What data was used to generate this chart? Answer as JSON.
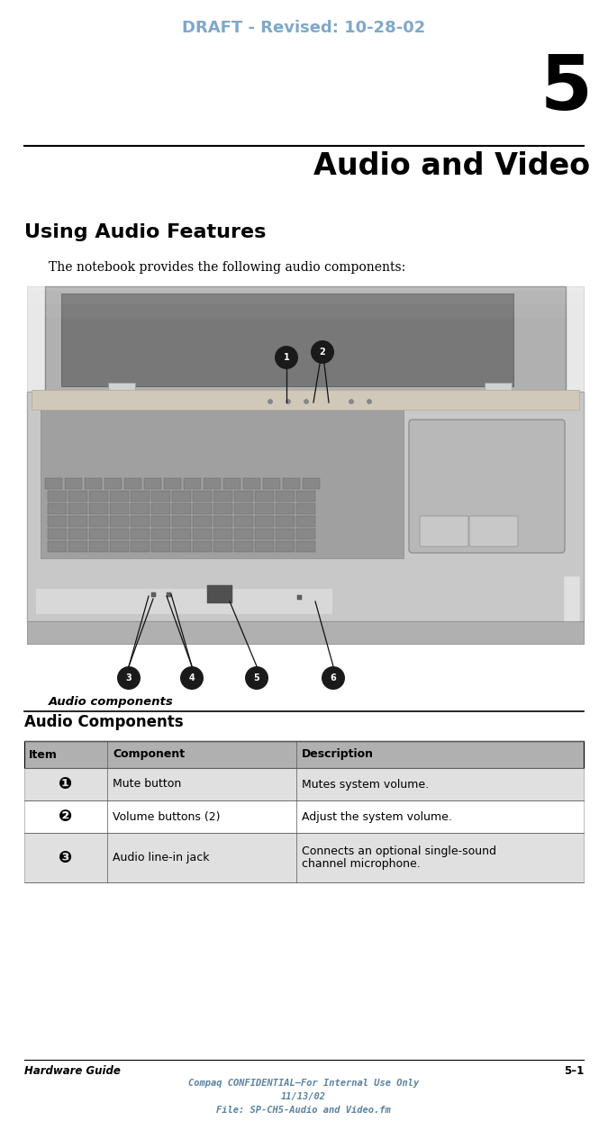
{
  "page_width": 6.75,
  "page_height": 12.45,
  "bg_color": "#ffffff",
  "header_text": "DRAFT - Revised: 10-28-02",
  "header_color": "#7fa8c9",
  "chapter_number": "5",
  "chapter_title": "Audio and Video",
  "section_title": "Using Audio Features",
  "section_intro": "The notebook provides the following audio components:",
  "figure_caption": "Audio components",
  "table_title": "Audio Components",
  "table_headers": [
    "Item",
    "Component",
    "Description"
  ],
  "table_rows": [
    [
      "❶",
      "Mute button",
      "Mutes system volume."
    ],
    [
      "❷",
      "Volume buttons (2)",
      "Adjust the system volume."
    ],
    [
      "❸",
      "Audio line-in jack",
      "Connects an optional single-sound\nchannel microphone."
    ]
  ],
  "footer_left": "Hardware Guide",
  "footer_right": "5–1",
  "footer_center1": "Compaq CONFIDENTIAL—For Internal Use Only",
  "footer_center2": "11/13/02",
  "footer_center3": "File: SP-CH5-Audio and Video.fm",
  "callout_fill": "#1a1a1a",
  "callout_text": "#ffffff",
  "table_header_bg": "#b0b0b0",
  "table_alt_bg": "#e0e0e0",
  "table_white_bg": "#ffffff"
}
